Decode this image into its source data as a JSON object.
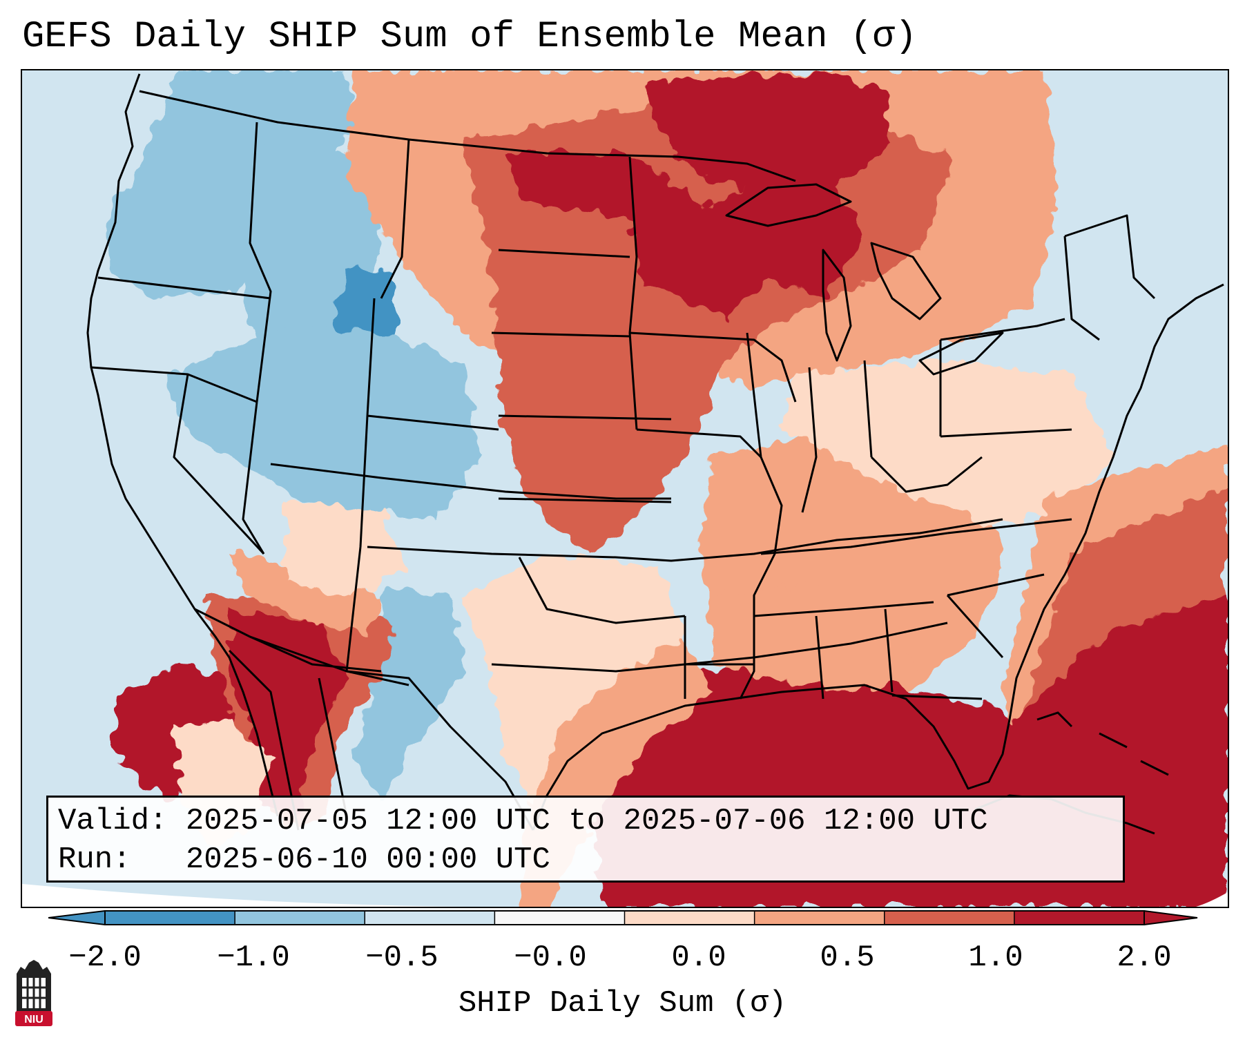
{
  "title": "GEFS Daily SHIP Sum of Ensemble Mean (σ)",
  "info": {
    "valid_line": "Valid: 2025-07-05 12:00 UTC to 2025-07-06 12:00 UTC",
    "run_line": "Run:   2025-06-10 00:00 UTC"
  },
  "colorbar": {
    "label": "SHIP Daily Sum (σ)",
    "tick_labels": [
      "−2.0",
      "−1.0",
      "−0.5",
      "−0.0",
      "0.0",
      "0.5",
      "1.0",
      "2.0"
    ],
    "colors": [
      "#4393c3",
      "#92c5de",
      "#d1e5f0",
      "#f7f7f7",
      "#fddbc7",
      "#f4a582",
      "#d6604d",
      "#b2182b"
    ],
    "extend": "both"
  },
  "logo": {
    "text": "NIU",
    "color": "#c8102e"
  },
  "map": {
    "region": "Contiguous United States",
    "field": "SHIP daily sum anomaly",
    "colors": {
      "strong_neg": "#4393c3",
      "neg": "#92c5de",
      "weak_neg": "#d1e5f0",
      "weak_pos": "#fddbc7",
      "pos": "#f4a582",
      "mod_pos": "#d6604d",
      "strong_pos": "#b2182b"
    }
  }
}
